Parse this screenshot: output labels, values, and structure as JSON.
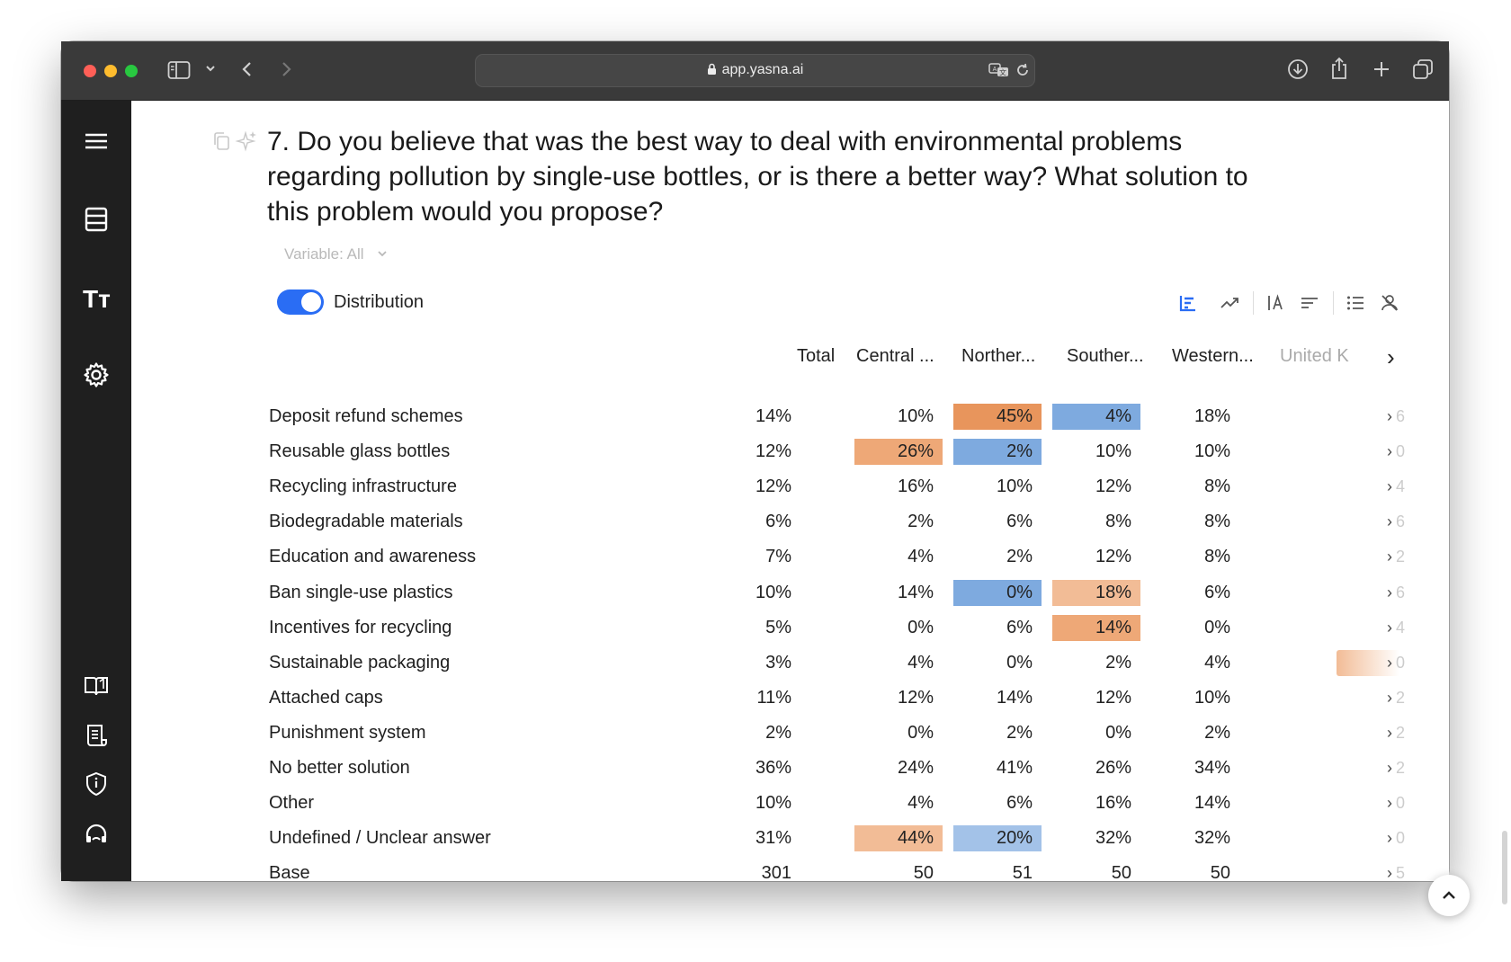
{
  "browser": {
    "url": "app.yasna.ai"
  },
  "sidebar": {
    "items": [
      {
        "icon": "menu-icon"
      },
      {
        "icon": "table-icon"
      },
      {
        "icon": "text-icon",
        "label": "Tт"
      },
      {
        "icon": "gear-icon"
      },
      {
        "icon": "book-icon"
      },
      {
        "icon": "document-icon"
      },
      {
        "icon": "shield-icon"
      },
      {
        "icon": "support-icon"
      }
    ]
  },
  "question": {
    "title": "7. Do you believe that was the best way to deal with environmental problems regarding pollution by single-use bottles, or is there a better way? What solution to this problem would you propose?",
    "variable_label": "Variable: All"
  },
  "distribution": {
    "label": "Distribution",
    "enabled": true
  },
  "colors": {
    "accent": "#2a6df4",
    "orange_strong": "#e8955c",
    "orange_mid": "#eea877",
    "orange_light": "#f2bc96",
    "blue_strong": "#7eaadf",
    "blue_light": "#a3c2e8"
  },
  "table": {
    "columns": [
      "Total",
      "Central ...",
      "Norther...",
      "Souther...",
      "Western...",
      "United K"
    ],
    "rows": [
      {
        "label": "Deposit refund schemes",
        "values": [
          "14%",
          "10%",
          "45%",
          "4%",
          "18%"
        ],
        "edge": "6"
      },
      {
        "label": "Reusable glass bottles",
        "values": [
          "12%",
          "26%",
          "2%",
          "10%",
          "10%"
        ],
        "edge": "0"
      },
      {
        "label": "Recycling infrastructure",
        "values": [
          "12%",
          "16%",
          "10%",
          "12%",
          "8%"
        ],
        "edge": "4"
      },
      {
        "label": "Biodegradable materials",
        "values": [
          "6%",
          "2%",
          "6%",
          "8%",
          "8%"
        ],
        "edge": "6"
      },
      {
        "label": "Education and awareness",
        "values": [
          "7%",
          "4%",
          "2%",
          "12%",
          "8%"
        ],
        "edge": "2"
      },
      {
        "label": "Ban single-use plastics",
        "values": [
          "10%",
          "14%",
          "0%",
          "18%",
          "6%"
        ],
        "edge": "6"
      },
      {
        "label": "Incentives for recycling",
        "values": [
          "5%",
          "0%",
          "6%",
          "14%",
          "0%"
        ],
        "edge": "4"
      },
      {
        "label": "Sustainable packaging",
        "values": [
          "3%",
          "4%",
          "0%",
          "2%",
          "4%"
        ],
        "edge": "0"
      },
      {
        "label": "Attached caps",
        "values": [
          "11%",
          "12%",
          "14%",
          "12%",
          "10%"
        ],
        "edge": "2"
      },
      {
        "label": "Punishment system",
        "values": [
          "2%",
          "0%",
          "2%",
          "0%",
          "2%"
        ],
        "edge": "2"
      },
      {
        "label": "No better solution",
        "values": [
          "36%",
          "24%",
          "41%",
          "26%",
          "34%"
        ],
        "edge": "2"
      },
      {
        "label": "Other",
        "values": [
          "10%",
          "4%",
          "6%",
          "16%",
          "14%"
        ],
        "edge": "0"
      },
      {
        "label": "Undefined / Unclear answer",
        "values": [
          "31%",
          "44%",
          "20%",
          "32%",
          "32%"
        ],
        "edge": "0"
      },
      {
        "label": "Base",
        "values": [
          "301",
          "50",
          "51",
          "50",
          "50"
        ],
        "edge": "5"
      }
    ],
    "highlights": [
      {
        "row": 0,
        "col": 2,
        "color": "#e8955c"
      },
      {
        "row": 0,
        "col": 3,
        "color": "#7eaadf"
      },
      {
        "row": 1,
        "col": 1,
        "color": "#eea877"
      },
      {
        "row": 1,
        "col": 2,
        "color": "#7eaadf"
      },
      {
        "row": 5,
        "col": 2,
        "color": "#7eaadf"
      },
      {
        "row": 5,
        "col": 3,
        "color": "#f2bc96"
      },
      {
        "row": 6,
        "col": 3,
        "color": "#eea877"
      },
      {
        "row": 12,
        "col": 1,
        "color": "#f2bc96"
      },
      {
        "row": 12,
        "col": 2,
        "color": "#a3c2e8"
      }
    ],
    "edge_highlight_row": 7,
    "edge_highlight_color": "#f2bc96"
  }
}
